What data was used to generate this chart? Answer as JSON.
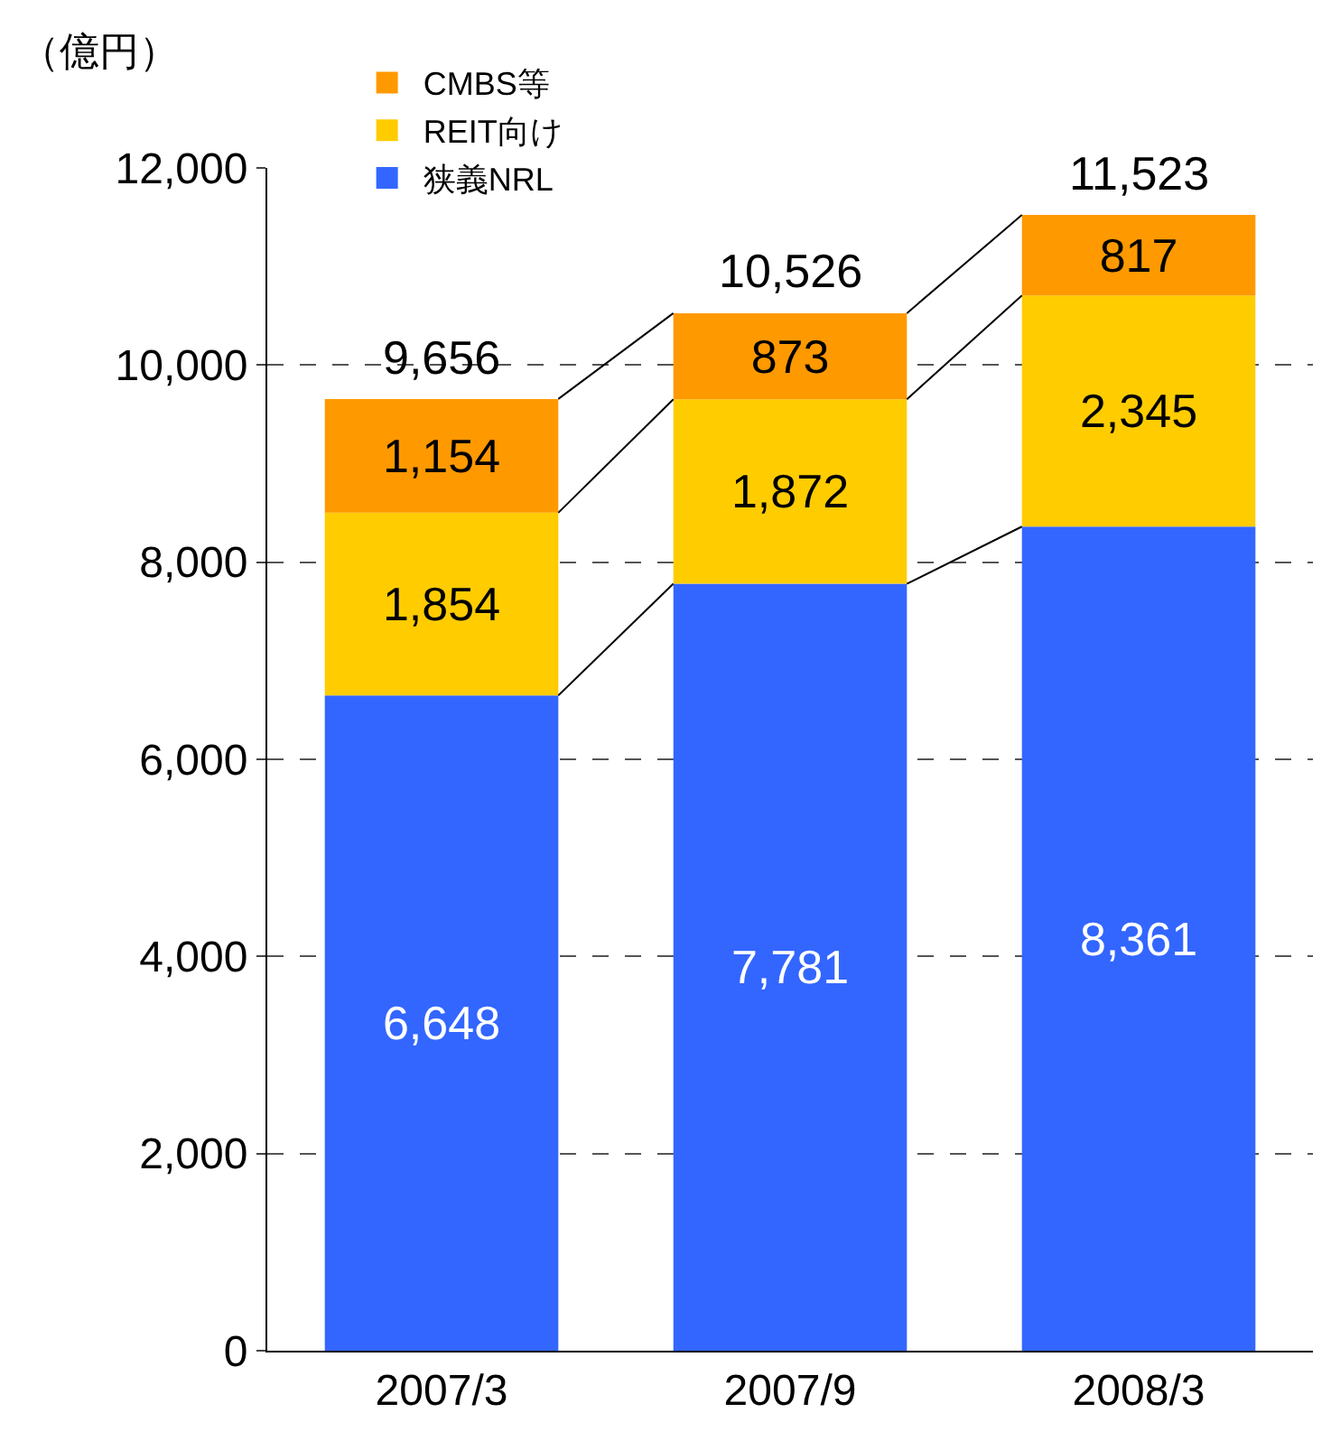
{
  "chart_data": {
    "type": "bar",
    "stacked": true,
    "ylabel": "（億円）",
    "categories": [
      "2007/3",
      "2007/9",
      "2008/3"
    ],
    "series": [
      {
        "name": "狭義NRL",
        "color": "#3366ff",
        "values": [
          6648,
          7781,
          8361
        ],
        "value_labels": [
          "6,648",
          "7,781",
          "8,361"
        ]
      },
      {
        "name": "REIT向け",
        "color": "#ffcc00",
        "values": [
          1854,
          1872,
          2345
        ],
        "value_labels": [
          "1,854",
          "1,872",
          "2,345"
        ]
      },
      {
        "name": "CMBS等",
        "color": "#ff9900",
        "values": [
          1154,
          873,
          817
        ],
        "value_labels": [
          "1,154",
          "873",
          "817"
        ]
      }
    ],
    "totals": [
      "9,656",
      "10,526",
      "11,523"
    ],
    "ylim": [
      0,
      12000
    ],
    "yticks": [
      0,
      {
        "value": 2000,
        "label": "2,000"
      },
      {
        "value": 4000,
        "label": "4,000"
      },
      {
        "value": 6000,
        "label": "6,000"
      },
      {
        "value": 8000,
        "label": "8,000"
      },
      {
        "value": 10000,
        "label": "10,000"
      },
      {
        "value": 12000,
        "label": "12,000"
      }
    ],
    "grid": "y",
    "legend": "top left"
  }
}
